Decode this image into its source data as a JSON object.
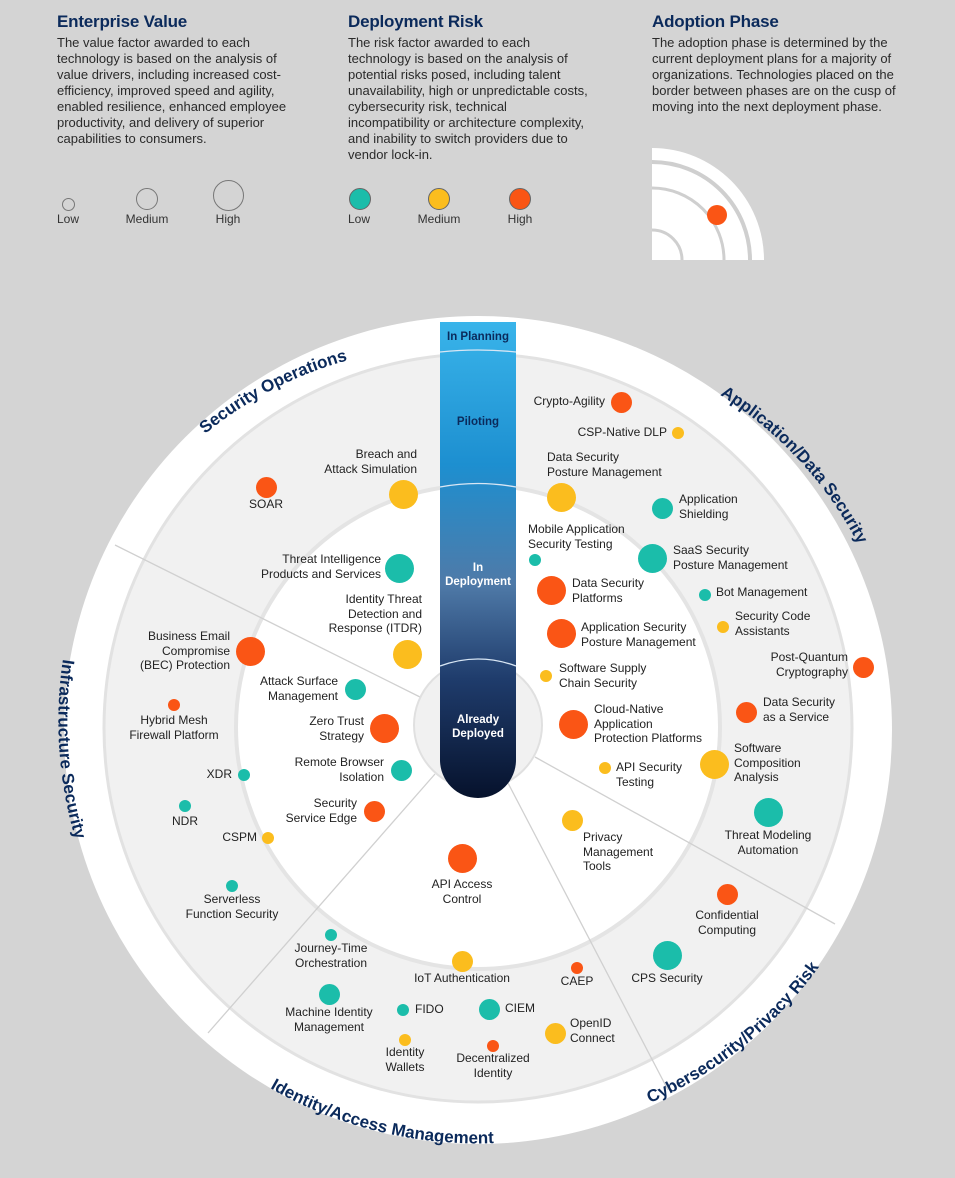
{
  "legend": {
    "value": {
      "title": "Enterprise Value",
      "description": "The value factor awarded to each technology is based on the analysis of value drivers, including increased cost-efficiency, improved speed and agility, enabled resilience, enhanced employee productivity, and delivery of superior capabilities to consumers.",
      "levels": [
        "Low",
        "Medium",
        "High"
      ]
    },
    "risk": {
      "title": "Deployment Risk",
      "description": "The risk factor awarded to each technology is based on the analysis of potential risks posed, including talent unavailability, high or unpredictable costs, cybersecurity risk, technical incompatibility or architecture complexity, and inability to switch providers due to vendor lock-in.",
      "levels": [
        "Low",
        "Medium",
        "High"
      ]
    },
    "phase": {
      "title": "Adoption Phase",
      "description": "The adoption phase is determined by the current deployment plans for a majority of organizations. Technologies placed on the border between phases are on the cusp of moving into the next deployment phase."
    }
  },
  "colors": {
    "low": "#1bbdaa",
    "medium": "#fbbd1e",
    "high": "#fa5515",
    "title": "#0b2a5b"
  },
  "phases": [
    "In Planning",
    "Piloting",
    "In\nDeployment",
    "Already\nDeployed"
  ],
  "categories": [
    "Security Operations",
    "Application/Data Security",
    "Cybersecurity/Privacy Risk",
    "Identity/Access Management",
    "Infrastructure Security"
  ],
  "items": [
    {
      "name": "Crypto-Agility",
      "value": "medium",
      "risk": "high"
    },
    {
      "name": "CSP-Native DLP",
      "value": "low",
      "risk": "medium"
    },
    {
      "name": "Data Security\nPosture Management",
      "value": "high",
      "risk": "medium"
    },
    {
      "name": "Application\nShielding",
      "value": "medium",
      "risk": "low"
    },
    {
      "name": "Mobile Application\nSecurity Testing",
      "value": "low",
      "risk": "low"
    },
    {
      "name": "SaaS Security\nPosture Management",
      "value": "high",
      "risk": "low"
    },
    {
      "name": "Data Security\nPlatforms",
      "value": "high",
      "risk": "high"
    },
    {
      "name": "Bot Management",
      "value": "low",
      "risk": "low"
    },
    {
      "name": "Security Code\nAssistants",
      "value": "low",
      "risk": "medium"
    },
    {
      "name": "Application Security\nPosture Management",
      "value": "high",
      "risk": "high"
    },
    {
      "name": "Post-Quantum\nCryptography",
      "value": "medium",
      "risk": "high"
    },
    {
      "name": "Software Supply\nChain Security",
      "value": "low",
      "risk": "medium"
    },
    {
      "name": "Data Security\nas a Service",
      "value": "medium",
      "risk": "high"
    },
    {
      "name": "Cloud-Native\nApplication\nProtection Platforms",
      "value": "high",
      "risk": "high"
    },
    {
      "name": "Software\nComposition\nAnalysis",
      "value": "high",
      "risk": "medium"
    },
    {
      "name": "API Security\nTesting",
      "value": "low",
      "risk": "medium"
    },
    {
      "name": "Threat Modeling\nAutomation",
      "value": "high",
      "risk": "low"
    },
    {
      "name": "Privacy\nManagement\nTools",
      "value": "medium",
      "risk": "medium"
    },
    {
      "name": "Confidential\nComputing",
      "value": "medium",
      "risk": "high"
    },
    {
      "name": "CPS Security",
      "value": "high",
      "risk": "low"
    },
    {
      "name": "API Access\nControl",
      "value": "high",
      "risk": "high"
    },
    {
      "name": "IoT Authentication",
      "value": "medium",
      "risk": "medium"
    },
    {
      "name": "CAEP",
      "value": "low",
      "risk": "high"
    },
    {
      "name": "CIEM",
      "value": "medium",
      "risk": "low"
    },
    {
      "name": "FIDO",
      "value": "low",
      "risk": "low"
    },
    {
      "name": "Machine Identity\nManagement",
      "value": "medium",
      "risk": "low"
    },
    {
      "name": "Journey-Time\nOrchestration",
      "value": "low",
      "risk": "low"
    },
    {
      "name": "OpenID\nConnect",
      "value": "medium",
      "risk": "medium"
    },
    {
      "name": "Identity\nWallets",
      "value": "low",
      "risk": "medium"
    },
    {
      "name": "Decentralized\nIdentity",
      "value": "low",
      "risk": "high"
    },
    {
      "name": "Business Email\nCompromise\n(BEC) Protection",
      "value": "high",
      "risk": "high"
    },
    {
      "name": "Attack Surface\nManagement",
      "value": "medium",
      "risk": "low"
    },
    {
      "name": "Hybrid Mesh\nFirewall Platform",
      "value": "low",
      "risk": "high"
    },
    {
      "name": "Zero Trust\nStrategy",
      "value": "high",
      "risk": "high"
    },
    {
      "name": "Remote Browser\nIsolation",
      "value": "medium",
      "risk": "low"
    },
    {
      "name": "XDR",
      "value": "low",
      "risk": "low"
    },
    {
      "name": "Security\nService Edge",
      "value": "medium",
      "risk": "high"
    },
    {
      "name": "NDR",
      "value": "low",
      "risk": "low"
    },
    {
      "name": "CSPM",
      "value": "low",
      "risk": "medium"
    },
    {
      "name": "Serverless\nFunction Security",
      "value": "low",
      "risk": "low"
    },
    {
      "name": "SOAR",
      "value": "medium",
      "risk": "high"
    },
    {
      "name": "Breach and\nAttack Simulation",
      "value": "high",
      "risk": "medium"
    },
    {
      "name": "Threat Intelligence\nProducts and Services",
      "value": "high",
      "risk": "low"
    },
    {
      "name": "Identity Threat\nDetection and\nResponse (ITDR)",
      "value": "high",
      "risk": "medium"
    }
  ]
}
